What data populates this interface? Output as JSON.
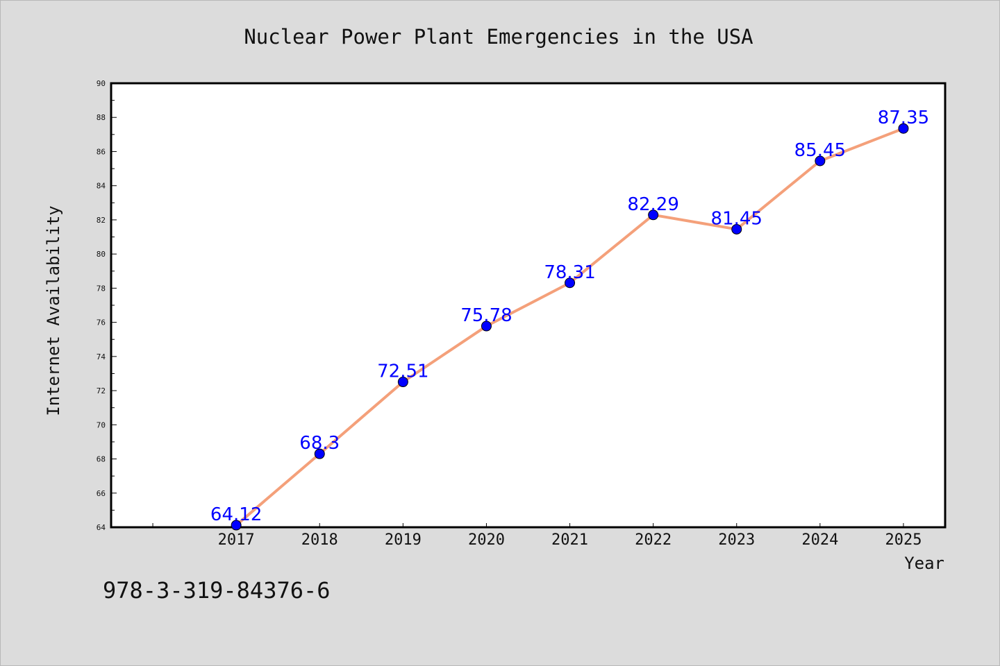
{
  "colors": {
    "background": "#dcdcdc",
    "plot_area": "#ffffff",
    "line": "#f4a07a",
    "marker": "#0000ff",
    "data_label": "#0000ff",
    "text": "#111111"
  },
  "footer": {
    "isbn": "978-3-319-84376-6"
  },
  "chart_data": {
    "type": "line",
    "title": "Nuclear Power Plant Emergencies in the USA",
    "xlabel": "Year",
    "ylabel": "Internet Availability",
    "categories": [
      "2017",
      "2018",
      "2019",
      "2020",
      "2021",
      "2022",
      "2023",
      "2024",
      "2025"
    ],
    "values": [
      64.12,
      68.3,
      72.51,
      75.78,
      78.31,
      82.29,
      81.45,
      85.45,
      87.35
    ],
    "data_labels": [
      "64.12",
      "68.3",
      "72.51",
      "75.78",
      "78.31",
      "82.29",
      "81.45",
      "85.45",
      "87.35"
    ],
    "ylim": [
      64,
      90
    ],
    "xlim": [
      2015.5,
      2025.5
    ],
    "y_ticks": [
      "64",
      "66",
      "68",
      "70",
      "72",
      "74",
      "76",
      "78",
      "80",
      "82",
      "84",
      "86",
      "88",
      "90"
    ],
    "grid": false,
    "legend": "none"
  }
}
